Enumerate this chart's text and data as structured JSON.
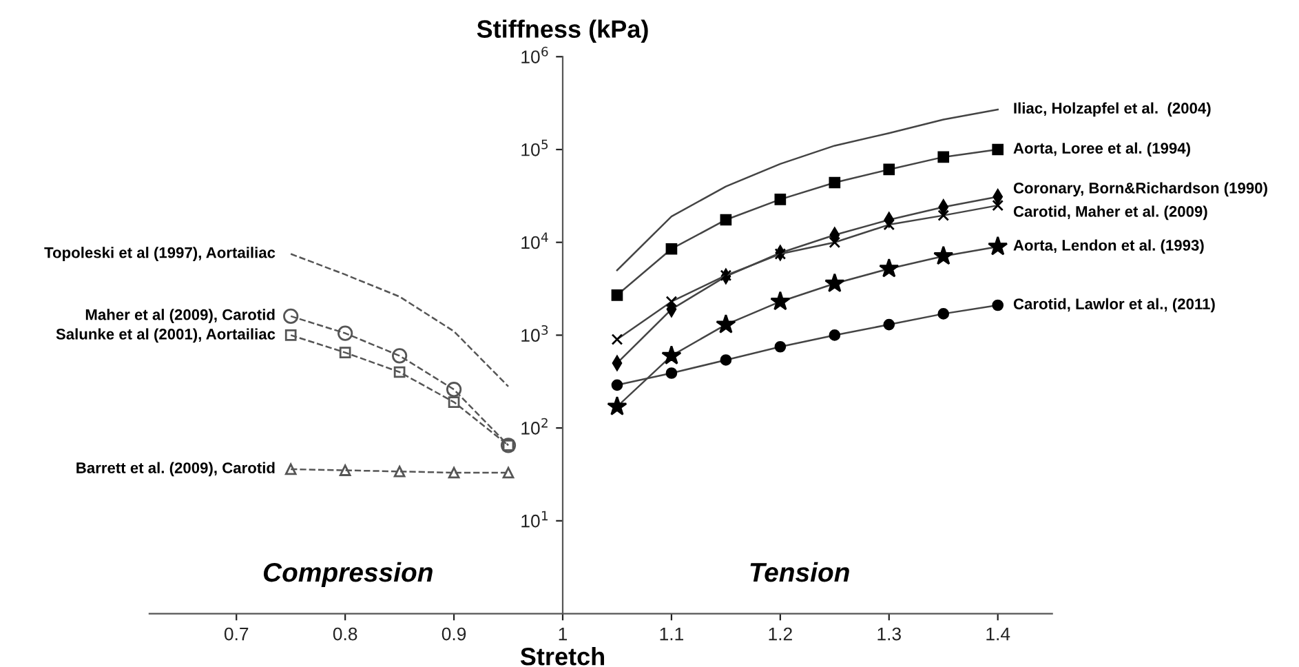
{
  "chart_data": {
    "type": "line",
    "xlabel": "Stretch",
    "ylabel": "Stiffness (kPa)",
    "log": "y",
    "grid": false,
    "xlim": [
      0.62,
      1.45
    ],
    "xticks": [
      0.7,
      0.8,
      0.9,
      1,
      1.1,
      1.2,
      1.3,
      1.4
    ],
    "ylim": [
      1,
      1000000
    ],
    "yticks": [
      {
        "value": 10,
        "label": "10$^{1}$"
      },
      {
        "value": 100,
        "label": "10$^{2}$"
      },
      {
        "value": 1000,
        "label": "10$^{3}$"
      },
      {
        "value": 10000,
        "label": "10$^{4}$"
      },
      {
        "value": 100000,
        "label": "10$^{5}$"
      },
      {
        "value": 1000000,
        "label": "10$^{6}$"
      }
    ],
    "annotations": [
      "Compression",
      "Tension"
    ],
    "series": [
      {
        "name": "Iliac, Holzapfel et al.  (2004)",
        "color": "#444444",
        "marker": "none",
        "line_style": "solid",
        "x": [
          1.05,
          1.1,
          1.15,
          1.2,
          1.25,
          1.3,
          1.35,
          1.4
        ],
        "values": [
          5000,
          19000,
          40000,
          70000,
          110000,
          150000,
          210000,
          270000
        ]
      },
      {
        "name": "Aorta, Loree et al. (1994)",
        "color": "#444444",
        "marker": "square",
        "line_style": "solid",
        "x": [
          1.05,
          1.1,
          1.15,
          1.2,
          1.25,
          1.3,
          1.35,
          1.4
        ],
        "values": [
          2700,
          8500,
          17500,
          29000,
          44000,
          61000,
          83000,
          100000
        ]
      },
      {
        "name": "Coronary, Born&Richardson (1990)",
        "color": "#444444",
        "marker": "diamond",
        "line_style": "solid",
        "x": [
          1.05,
          1.1,
          1.15,
          1.2,
          1.25,
          1.3,
          1.35,
          1.4
        ],
        "values": [
          500,
          1900,
          4300,
          7700,
          12000,
          17500,
          24000,
          31000
        ]
      },
      {
        "name": "Carotid, Maher et al. (2009)",
        "color": "#444444",
        "marker": "cross",
        "line_style": "solid",
        "x": [
          1.05,
          1.1,
          1.15,
          1.2,
          1.25,
          1.3,
          1.35,
          1.4
        ],
        "values": [
          900,
          2300,
          4400,
          7500,
          10000,
          15500,
          19500,
          25000
        ]
      },
      {
        "name": "Aorta, Lendon et al. (1993)",
        "color": "#444444",
        "marker": "star",
        "line_style": "solid",
        "x": [
          1.05,
          1.1,
          1.15,
          1.2,
          1.25,
          1.3,
          1.35,
          1.4
        ],
        "values": [
          170,
          600,
          1300,
          2300,
          3600,
          5200,
          7100,
          9000
        ]
      },
      {
        "name": "Carotid, Lawlor et al., (2011)",
        "color": "#444444",
        "marker": "circle",
        "line_style": "solid",
        "x": [
          1.05,
          1.1,
          1.15,
          1.2,
          1.25,
          1.3,
          1.35,
          1.4
        ],
        "values": [
          290,
          390,
          540,
          750,
          1000,
          1300,
          1700,
          2100
        ]
      },
      {
        "name": "Topoleski et al (1997), Aortailiac",
        "color": "#555555",
        "marker": "none",
        "line_style": "dashed",
        "x": [
          0.75,
          0.8,
          0.85,
          0.9,
          0.95
        ],
        "values": [
          7500,
          4500,
          2600,
          1100,
          280
        ]
      },
      {
        "name": "Maher et al (2009), Carotid",
        "color": "#555555",
        "marker": "circle",
        "line_style": "dashed",
        "x": [
          0.75,
          0.8,
          0.85,
          0.9,
          0.95
        ],
        "values": [
          1600,
          1050,
          600,
          260,
          65
        ]
      },
      {
        "name": "Salunke et al (2001), Aortailiac",
        "color": "#555555",
        "marker": "square",
        "line_style": "dashed",
        "x": [
          0.75,
          0.8,
          0.85,
          0.9,
          0.95
        ],
        "values": [
          1000,
          650,
          400,
          190,
          65
        ]
      },
      {
        "name": "Barrett et al. (2009), Carotid",
        "color": "#555555",
        "marker": "triangle",
        "line_style": "dashed",
        "x": [
          0.75,
          0.8,
          0.85,
          0.9,
          0.95
        ],
        "values": [
          36,
          35,
          34,
          33,
          33
        ]
      }
    ]
  }
}
